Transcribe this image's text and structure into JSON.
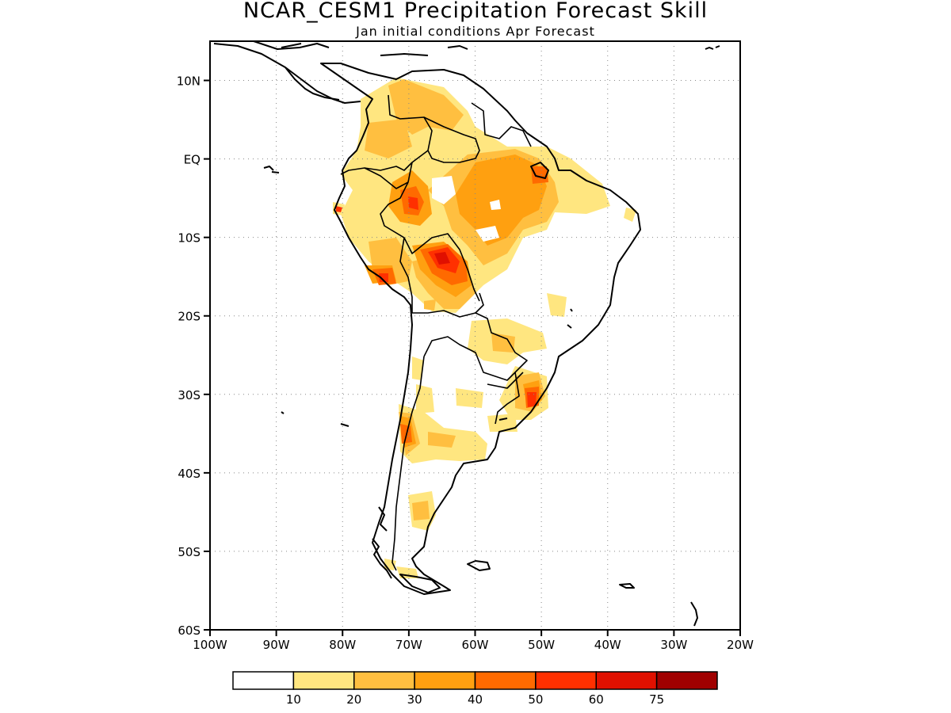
{
  "title": "NCAR_CESM1 Precipitation Forecast Skill",
  "subtitle": "Jan initial conditions  Apr Forecast",
  "map": {
    "lon_range": [
      -100,
      -20
    ],
    "lat_range": [
      -60,
      15
    ],
    "lat_ticks": [
      {
        "value": 10,
        "label": "10N"
      },
      {
        "value": 0,
        "label": "EQ"
      },
      {
        "value": -10,
        "label": "10S"
      },
      {
        "value": -20,
        "label": "20S"
      },
      {
        "value": -30,
        "label": "30S"
      },
      {
        "value": -40,
        "label": "40S"
      },
      {
        "value": -50,
        "label": "50S"
      },
      {
        "value": -60,
        "label": "60S"
      }
    ],
    "lon_ticks": [
      {
        "value": -100,
        "label": "100W"
      },
      {
        "value": -90,
        "label": "90W"
      },
      {
        "value": -80,
        "label": "80W"
      },
      {
        "value": -70,
        "label": "70W"
      },
      {
        "value": -60,
        "label": "60W"
      },
      {
        "value": -50,
        "label": "50W"
      },
      {
        "value": -40,
        "label": "40W"
      },
      {
        "value": -30,
        "label": "30W"
      },
      {
        "value": -20,
        "label": "20W"
      }
    ],
    "gridlines": "dotted"
  },
  "colorbar": {
    "colors": [
      "#ffffff",
      "#ffe680",
      "#ffbf40",
      "#ffa010",
      "#ff6a00",
      "#ff3000",
      "#e01000",
      "#a00000"
    ],
    "labels": [
      "10",
      "20",
      "30",
      "40",
      "50",
      "60",
      "75"
    ]
  }
}
